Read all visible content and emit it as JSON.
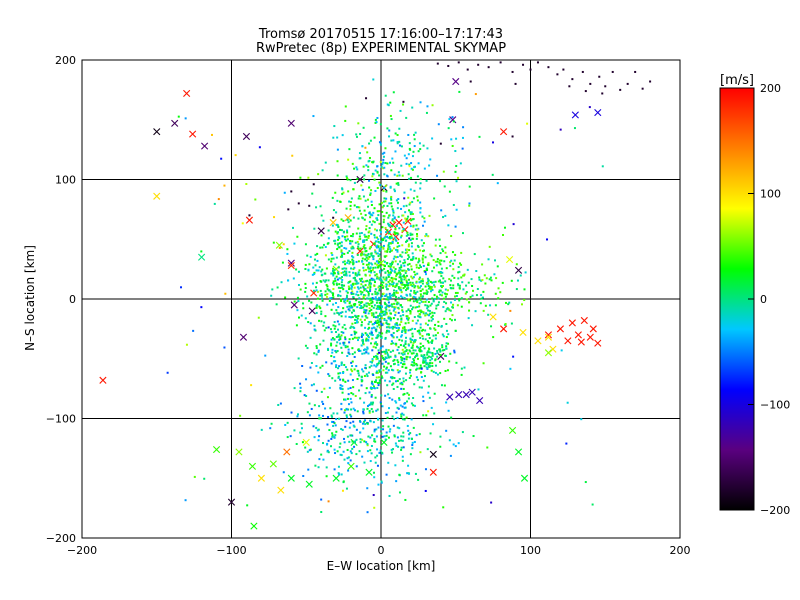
{
  "chart_data": {
    "type": "scatter",
    "title": "Tromsø 20170515 17:16:00–17:17:43",
    "subtitle": "RwPretec (8p) EXPERIMENTAL SKYMAP",
    "xlabel": "E–W location [km]",
    "ylabel": "N–S location [km]",
    "xlim": [
      -200,
      200
    ],
    "ylim": [
      -200,
      200
    ],
    "x_ticks": [
      -200,
      -100,
      0,
      100,
      200
    ],
    "y_ticks": [
      -200,
      -100,
      0,
      100,
      200
    ],
    "x_tick_labels": [
      "−200",
      "−100",
      "0",
      "100",
      "200"
    ],
    "y_tick_labels": [
      "−200",
      "−100",
      "0",
      "100",
      "200"
    ],
    "grid": true,
    "colorbar": {
      "label": "[m/s]",
      "range": [
        -200,
        200
      ],
      "ticks": [
        -200,
        -100,
        0,
        100,
        200
      ],
      "tick_labels": [
        "−200",
        "−100",
        "0",
        "100",
        "200"
      ],
      "colormap": [
        "#000000",
        "#5a0080",
        "#0000ff",
        "#00c8ff",
        "#00ff00",
        "#ffff00",
        "#ff8000",
        "#ff0000"
      ],
      "placement": "right"
    },
    "marker_types": [
      "dot",
      "x"
    ],
    "points": [
      [
        38,
        197,
        -180,
        "dot"
      ],
      [
        45,
        195,
        -180,
        "dot"
      ],
      [
        52,
        198,
        -180,
        "dot"
      ],
      [
        58,
        192,
        -180,
        "dot"
      ],
      [
        65,
        196,
        -180,
        "dot"
      ],
      [
        72,
        194,
        -180,
        "dot"
      ],
      [
        80,
        198,
        -180,
        "dot"
      ],
      [
        88,
        190,
        -180,
        "dot"
      ],
      [
        95,
        196,
        -180,
        "dot"
      ],
      [
        100,
        192,
        -180,
        "dot"
      ],
      [
        105,
        198,
        -180,
        "dot"
      ],
      [
        112,
        194,
        -180,
        "dot"
      ],
      [
        118,
        188,
        -180,
        "dot"
      ],
      [
        122,
        192,
        -180,
        "dot"
      ],
      [
        128,
        184,
        -180,
        "dot"
      ],
      [
        135,
        190,
        -180,
        "dot"
      ],
      [
        140,
        180,
        -180,
        "dot"
      ],
      [
        146,
        186,
        -180,
        "dot"
      ],
      [
        150,
        178,
        -180,
        "dot"
      ],
      [
        155,
        190,
        -180,
        "dot"
      ],
      [
        160,
        175,
        -180,
        "dot"
      ],
      [
        165,
        180,
        -180,
        "dot"
      ],
      [
        170,
        190,
        -180,
        "dot"
      ],
      [
        175,
        176,
        -180,
        "dot"
      ],
      [
        180,
        182,
        -180,
        "dot"
      ],
      [
        148,
        172,
        -180,
        "dot"
      ],
      [
        137,
        174,
        -180,
        "dot"
      ],
      [
        126,
        178,
        -180,
        "dot"
      ],
      [
        90,
        180,
        -180,
        "dot"
      ],
      [
        60,
        182,
        -180,
        "dot"
      ],
      [
        15,
        165,
        -180,
        "dot"
      ],
      [
        -10,
        168,
        -180,
        "dot"
      ],
      [
        88,
        136,
        -180,
        "dot"
      ],
      [
        40,
        130,
        -180,
        "dot"
      ],
      [
        -62,
        75,
        -180,
        "dot"
      ],
      [
        -55,
        80,
        -180,
        "dot"
      ],
      [
        -48,
        78,
        -180,
        "dot"
      ],
      [
        -32,
        68,
        -180,
        "dot"
      ],
      [
        -60,
        90,
        -180,
        "dot"
      ],
      [
        -45,
        96,
        -180,
        "dot"
      ],
      [
        -88,
        70,
        -180,
        "dot"
      ],
      [
        -150,
        140,
        -190,
        "x"
      ],
      [
        -130,
        172,
        190,
        "x"
      ],
      [
        -138,
        147,
        -160,
        "x"
      ],
      [
        -126,
        138,
        190,
        "x"
      ],
      [
        -118,
        128,
        -150,
        "x"
      ],
      [
        -90,
        136,
        -160,
        "x"
      ],
      [
        -60,
        147,
        -150,
        "x"
      ],
      [
        -14,
        100,
        -170,
        "x"
      ],
      [
        48,
        150,
        -140,
        "x"
      ],
      [
        50,
        182,
        -140,
        "x"
      ],
      [
        82,
        140,
        190,
        "x"
      ],
      [
        130,
        154,
        -100,
        "x"
      ],
      [
        145,
        156,
        -100,
        "x"
      ],
      [
        -150,
        86,
        100,
        "x"
      ],
      [
        -40,
        57,
        -170,
        "x"
      ],
      [
        -60,
        30,
        -140,
        "x"
      ],
      [
        -68,
        45,
        60,
        "x"
      ],
      [
        -60,
        28,
        180,
        "x"
      ],
      [
        -45,
        5,
        180,
        "x"
      ],
      [
        -32,
        64,
        110,
        "x"
      ],
      [
        -22,
        68,
        120,
        "x"
      ],
      [
        2,
        93,
        -190,
        "x"
      ],
      [
        8,
        62,
        190,
        "x"
      ],
      [
        12,
        64,
        190,
        "x"
      ],
      [
        16,
        58,
        190,
        "x"
      ],
      [
        5,
        56,
        190,
        "x"
      ],
      [
        10,
        52,
        190,
        "x"
      ],
      [
        18,
        65,
        190,
        "x"
      ],
      [
        -5,
        46,
        190,
        "x"
      ],
      [
        -14,
        40,
        190,
        "x"
      ],
      [
        0,
        30,
        60,
        "x"
      ],
      [
        -30,
        25,
        60,
        "x"
      ],
      [
        -88,
        66,
        190,
        "x"
      ],
      [
        -120,
        35,
        0,
        "x"
      ],
      [
        -186,
        -68,
        190,
        "x"
      ],
      [
        -92,
        -32,
        -150,
        "x"
      ],
      [
        -58,
        -5,
        -150,
        "x"
      ],
      [
        -46,
        -10,
        -160,
        "x"
      ],
      [
        40,
        -48,
        -160,
        "x"
      ],
      [
        46,
        -82,
        -120,
        "x"
      ],
      [
        52,
        -80,
        -120,
        "x"
      ],
      [
        57,
        -80,
        -120,
        "x"
      ],
      [
        61,
        -78,
        -120,
        "x"
      ],
      [
        66,
        -85,
        -120,
        "x"
      ],
      [
        -110,
        -126,
        40,
        "x"
      ],
      [
        -95,
        -128,
        60,
        "x"
      ],
      [
        -86,
        -140,
        40,
        "x"
      ],
      [
        -72,
        -138,
        50,
        "x"
      ],
      [
        -63,
        -128,
        150,
        "x"
      ],
      [
        -60,
        -150,
        20,
        "x"
      ],
      [
        -48,
        -155,
        20,
        "x"
      ],
      [
        -30,
        -150,
        20,
        "x"
      ],
      [
        -20,
        -140,
        40,
        "x"
      ],
      [
        -8,
        -145,
        20,
        "x"
      ],
      [
        2,
        -120,
        20,
        "x"
      ],
      [
        -80,
        -150,
        100,
        "x"
      ],
      [
        -100,
        -170,
        -180,
        "x"
      ],
      [
        -85,
        -190,
        30,
        "x"
      ],
      [
        -67,
        -160,
        100,
        "x"
      ],
      [
        35,
        -145,
        190,
        "x"
      ],
      [
        35,
        -130,
        -190,
        "x"
      ],
      [
        88,
        -110,
        40,
        "x"
      ],
      [
        96,
        -150,
        20,
        "x"
      ],
      [
        92,
        -128,
        20,
        "x"
      ],
      [
        112,
        -30,
        190,
        "x"
      ],
      [
        120,
        -25,
        190,
        "x"
      ],
      [
        125,
        -35,
        190,
        "x"
      ],
      [
        128,
        -20,
        190,
        "x"
      ],
      [
        132,
        -30,
        190,
        "x"
      ],
      [
        136,
        -18,
        190,
        "x"
      ],
      [
        140,
        -32,
        190,
        "x"
      ],
      [
        142,
        -25,
        190,
        "x"
      ],
      [
        145,
        -37,
        190,
        "x"
      ],
      [
        134,
        -36,
        190,
        "x"
      ],
      [
        115,
        -42,
        100,
        "x"
      ],
      [
        95,
        -28,
        100,
        "x"
      ],
      [
        105,
        -35,
        100,
        "x"
      ],
      [
        112,
        -32,
        100,
        "x"
      ],
      [
        75,
        -15,
        100,
        "x"
      ],
      [
        82,
        -25,
        190,
        "x"
      ],
      [
        92,
        24,
        -170,
        "x"
      ],
      [
        86,
        33,
        80,
        "x"
      ],
      [
        112,
        -45,
        60,
        "x"
      ],
      [
        -18,
        -120,
        20,
        "x"
      ],
      [
        -50,
        -120,
        80,
        "x"
      ]
    ]
  }
}
